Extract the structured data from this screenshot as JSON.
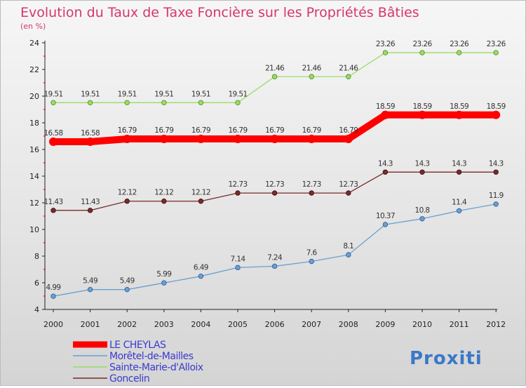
{
  "title": "Evolution du Taux de Taxe Foncière sur les Propriétés Bâties",
  "subtitle": "(en %)",
  "brand": "Proxiti",
  "chart_data": {
    "type": "line",
    "title": "Evolution du Taux de Taxe Foncière sur les Propriétés Bâties",
    "ylabel": "(en %)",
    "xlabel": "",
    "x": [
      "2000",
      "2001",
      "2002",
      "2003",
      "2004",
      "2005",
      "2006",
      "2007",
      "2008",
      "2009",
      "2010",
      "2011",
      "2012"
    ],
    "ylim": [
      4,
      24
    ],
    "yticks": [
      4,
      6,
      8,
      10,
      12,
      14,
      16,
      18,
      20,
      22,
      24
    ],
    "grid": false,
    "legend_position": "bottom-left",
    "series": [
      {
        "name": "LE CHEYLAS",
        "color": "#ff0000",
        "values": [
          16.58,
          16.58,
          16.79,
          16.79,
          16.79,
          16.79,
          16.79,
          16.79,
          16.79,
          18.59,
          18.59,
          18.59,
          18.59
        ]
      },
      {
        "name": "Morêtel-de-Mailles",
        "color": "#6aa0d0",
        "values": [
          4.99,
          5.49,
          5.49,
          5.99,
          6.49,
          7.14,
          7.24,
          7.6,
          8.1,
          10.37,
          10.8,
          11.4,
          11.9
        ]
      },
      {
        "name": "Sainte-Marie-d'Alloix",
        "color": "#99dd66",
        "values": [
          19.51,
          19.51,
          19.51,
          19.51,
          19.51,
          19.51,
          21.46,
          21.46,
          21.46,
          23.26,
          23.26,
          23.26,
          23.26
        ]
      },
      {
        "name": "Goncelin",
        "color": "#7a2a2a",
        "values": [
          11.43,
          11.43,
          12.12,
          12.12,
          12.12,
          12.73,
          12.73,
          12.73,
          12.73,
          14.3,
          14.3,
          14.3,
          14.3
        ]
      }
    ],
    "labels": [
      [
        "16.58",
        "16.58",
        "16.79",
        "16.79",
        "16.79",
        "16.79",
        "16.79",
        "16.79",
        "16.79",
        "18.59",
        "18.59",
        "18.59",
        "18.59"
      ],
      [
        "4.99",
        "5.49",
        "5.49",
        "5.99",
        "6.49",
        "7.14",
        "7.24",
        "7.6",
        "8.1",
        "10.37",
        "10.8",
        "11.4",
        "11.9"
      ],
      [
        "19.51",
        "19.51",
        "19.51",
        "19.51",
        "19.51",
        "19.51",
        "21.46",
        "21.46",
        "21.46",
        "23.26",
        "23.26",
        "23.26",
        "23.26"
      ],
      [
        "11.43",
        "11.43",
        "12.12",
        "12.12",
        "12.12",
        "12.73",
        "12.73",
        "12.73",
        "12.73",
        "14.3",
        "14.3",
        "14.3",
        "14.3"
      ]
    ]
  }
}
